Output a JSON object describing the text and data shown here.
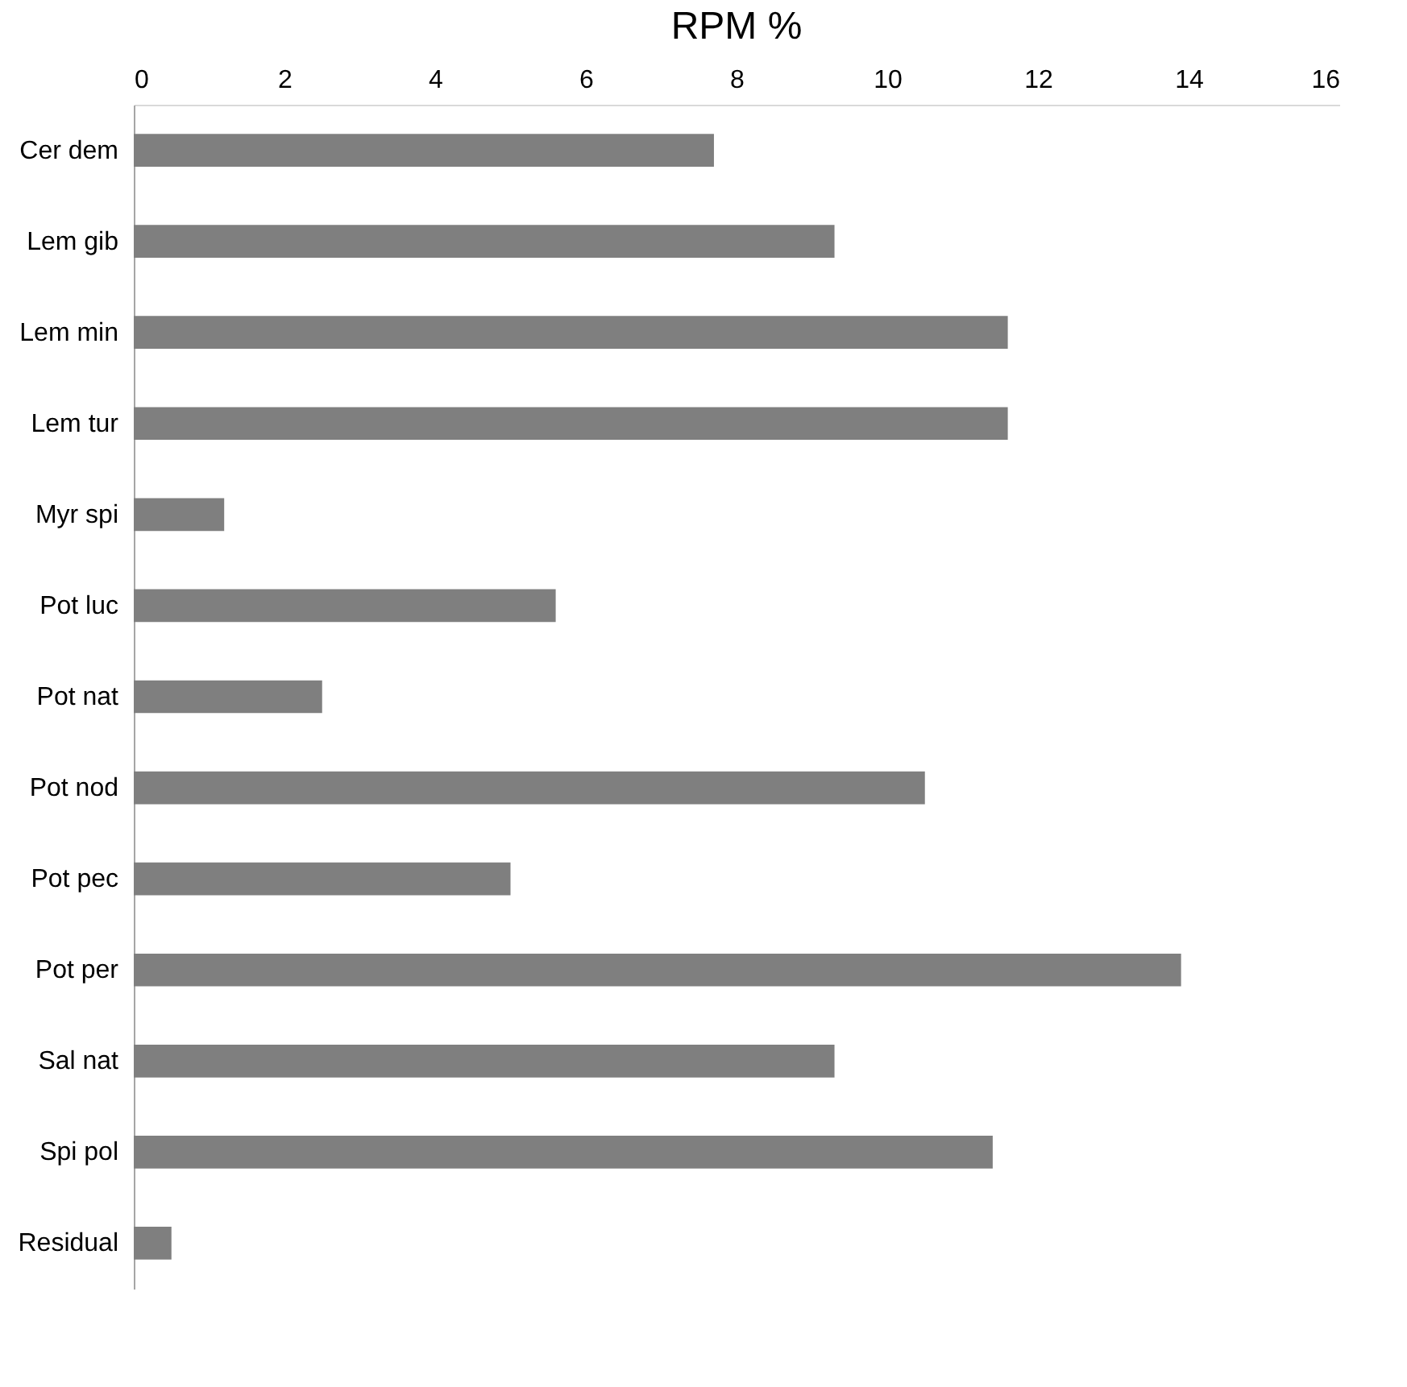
{
  "chart_data": {
    "type": "bar",
    "orientation": "horizontal",
    "title": "RPM %",
    "categories": [
      "Cer dem",
      "Lem gib",
      "Lem min",
      "Lem tur",
      "Myr spi",
      "Pot luc",
      "Pot nat",
      "Pot nod",
      "Pot pec",
      "Pot per",
      "Sal nat",
      "Spi pol",
      "Residual"
    ],
    "values": [
      7.7,
      9.3,
      11.6,
      11.6,
      1.2,
      5.6,
      2.5,
      10.5,
      5.0,
      13.9,
      9.3,
      11.4,
      0.5
    ],
    "color": "#7f7f7f",
    "xlim": [
      0,
      16
    ],
    "xticks": [
      0,
      2,
      4,
      6,
      8,
      10,
      12,
      14,
      16
    ],
    "grid": false
  }
}
